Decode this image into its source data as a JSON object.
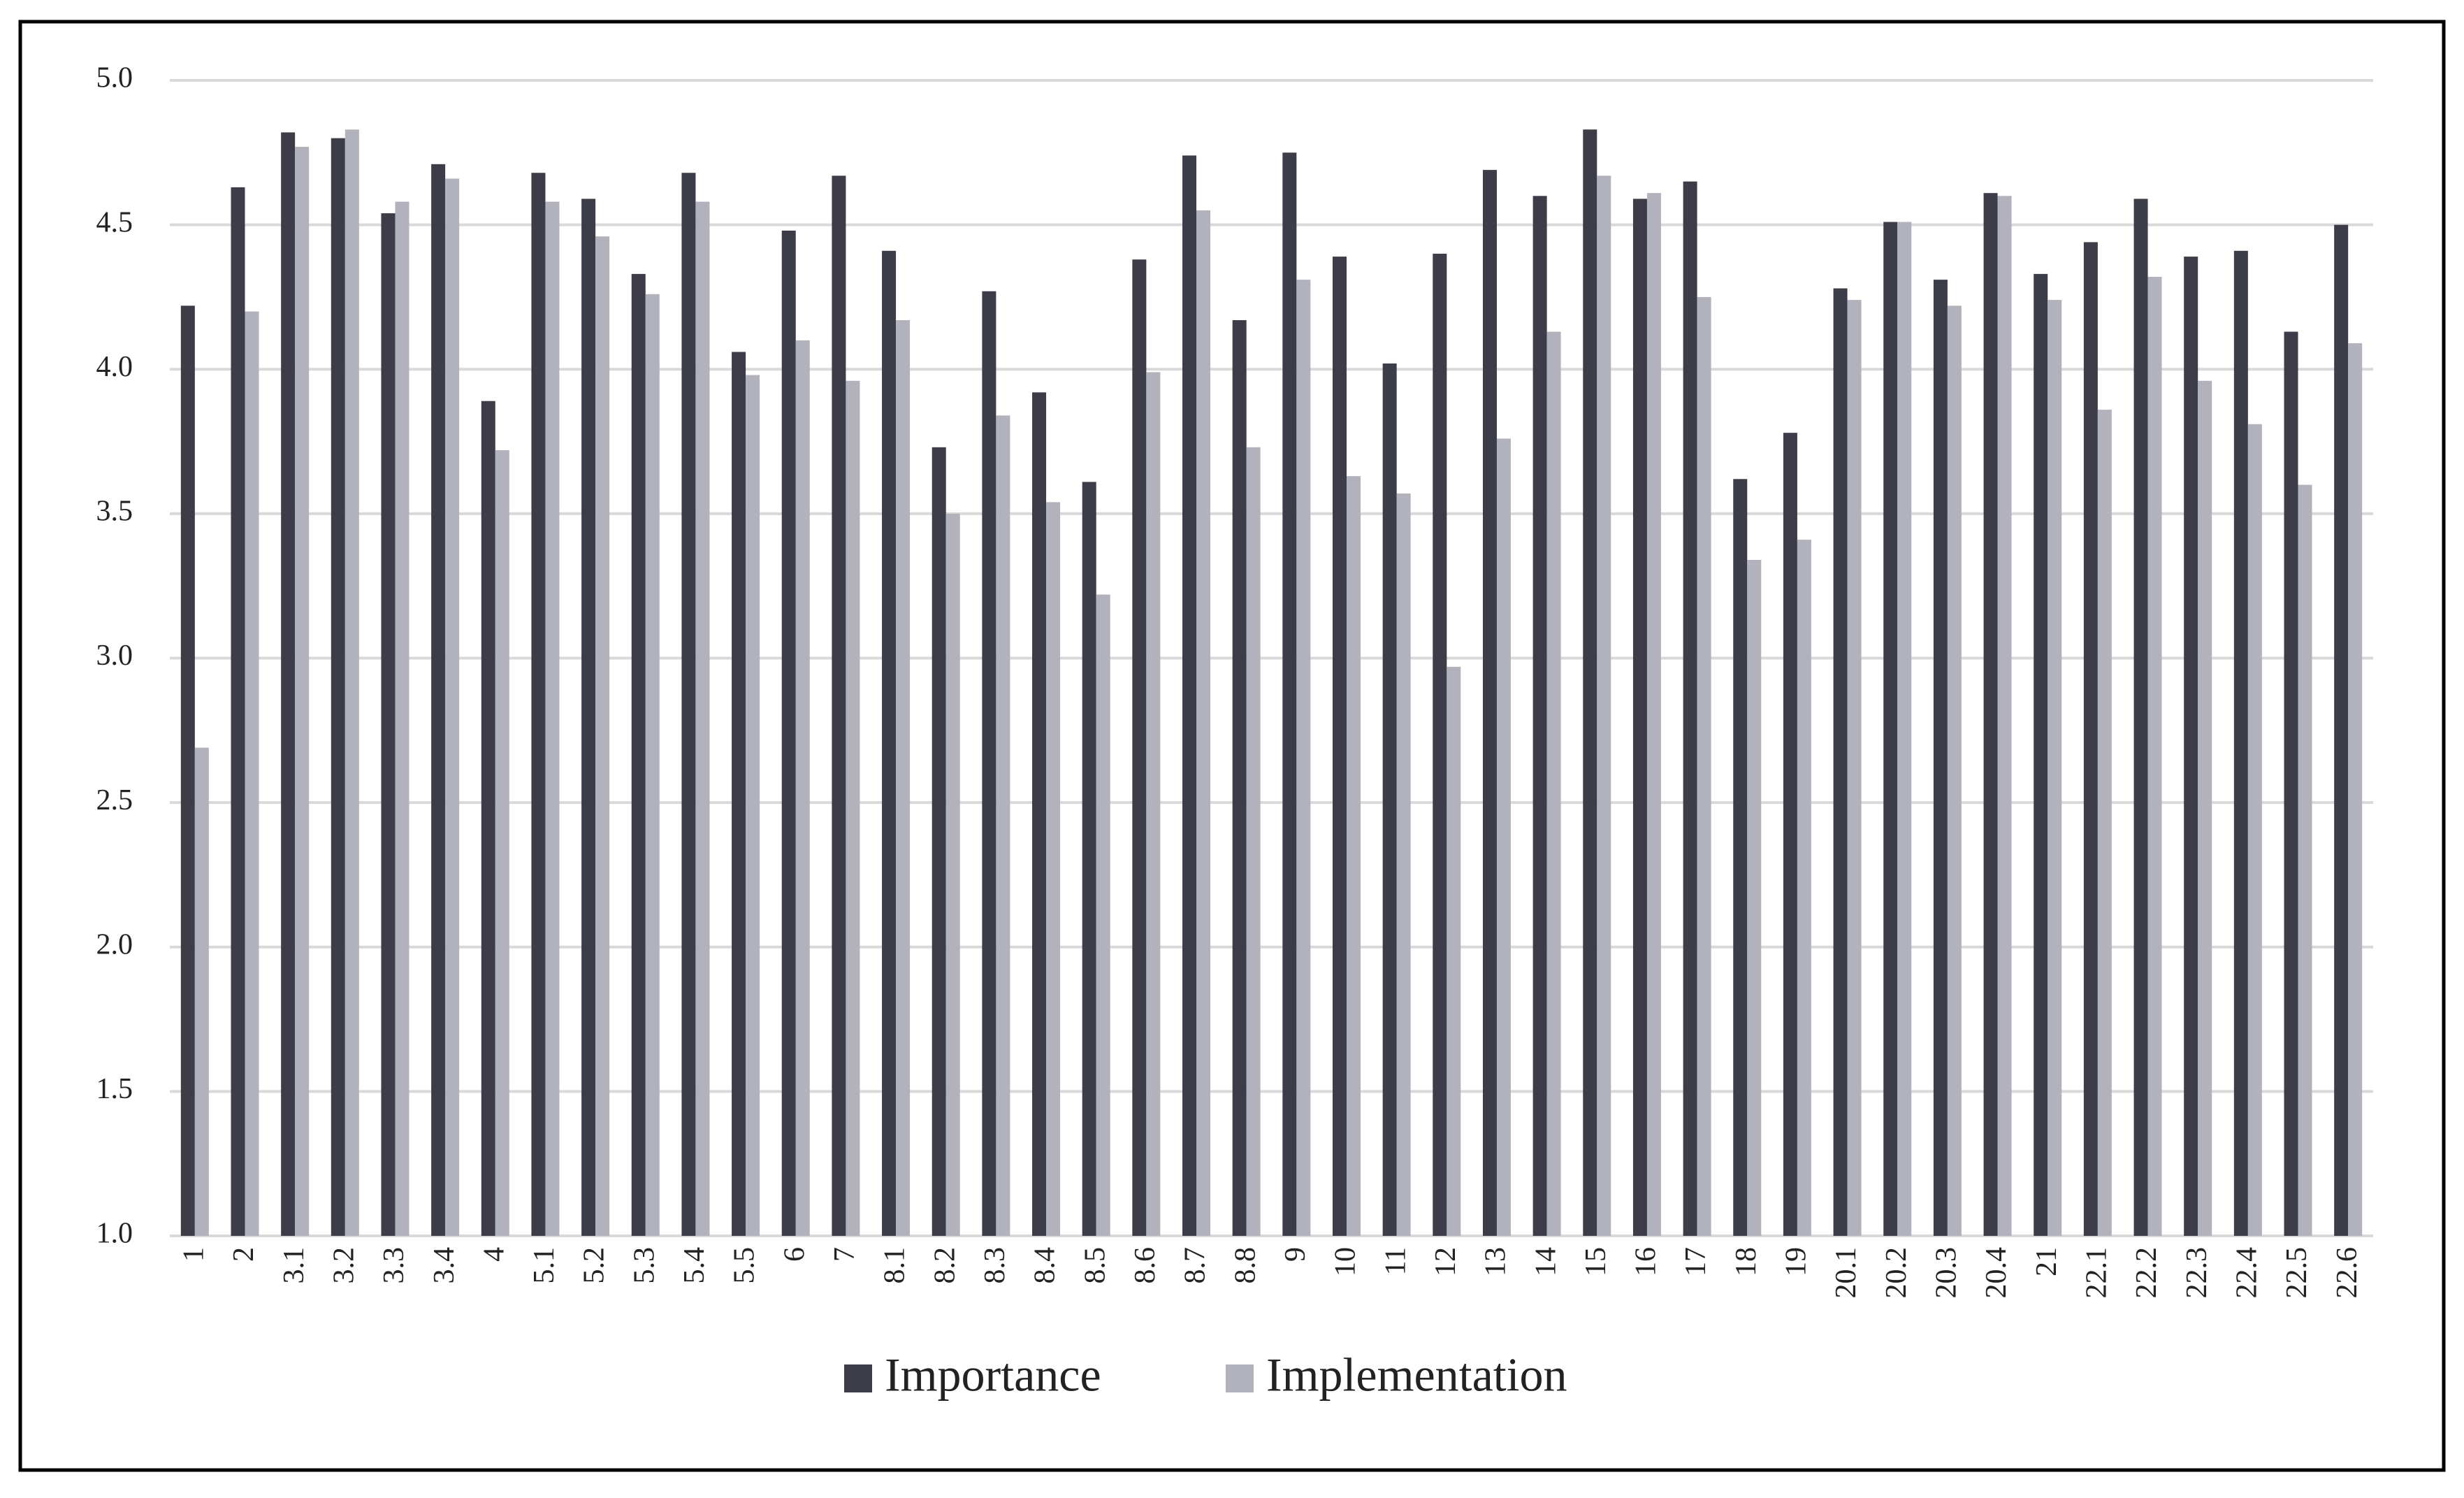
{
  "chart_data": {
    "type": "bar",
    "categories": [
      "1",
      "2",
      "3.1",
      "3.2",
      "3.3",
      "3.4",
      "4",
      "5.1",
      "5.2",
      "5.3",
      "5.4",
      "5.5",
      "6",
      "7",
      "8.1",
      "8.2",
      "8.3",
      "8.4",
      "8.5",
      "8.6",
      "8.7",
      "8.8",
      "9",
      "10",
      "11",
      "12",
      "13",
      "14",
      "15",
      "16",
      "17",
      "18",
      "19",
      "20.1",
      "20.2",
      "20.3",
      "20.4",
      "21",
      "22.1",
      "22.2",
      "22.3",
      "22.4",
      "22.5",
      "22.6"
    ],
    "series": [
      {
        "name": "Importance",
        "color": "#3d3d4a",
        "values": [
          4.22,
          4.63,
          4.82,
          4.8,
          4.54,
          4.71,
          3.89,
          4.68,
          4.59,
          4.33,
          4.68,
          4.06,
          4.48,
          4.67,
          4.41,
          3.73,
          4.27,
          3.92,
          3.61,
          4.38,
          4.74,
          4.17,
          4.75,
          4.39,
          4.02,
          4.4,
          4.69,
          4.6,
          4.83,
          4.59,
          4.65,
          3.62,
          3.78,
          4.28,
          4.51,
          4.31,
          4.61,
          4.33,
          4.44,
          4.59,
          4.39,
          4.41,
          4.13,
          4.5
        ]
      },
      {
        "name": "Implementation",
        "color": "#b2b2bc",
        "values": [
          2.69,
          4.2,
          4.77,
          4.83,
          4.58,
          4.66,
          3.72,
          4.58,
          4.46,
          4.26,
          4.58,
          3.98,
          4.1,
          3.96,
          4.17,
          3.5,
          3.84,
          3.54,
          3.22,
          3.99,
          4.55,
          3.73,
          4.31,
          3.63,
          3.57,
          2.97,
          3.76,
          4.13,
          4.67,
          4.61,
          4.25,
          3.34,
          3.41,
          4.24,
          4.51,
          4.22,
          4.6,
          4.24,
          3.86,
          4.32,
          3.96,
          3.81,
          3.6,
          4.09
        ]
      }
    ],
    "ylim": [
      1,
      5
    ],
    "yticks": [
      {
        "value": 1,
        "label": "1.0"
      },
      1.5,
      {
        "value": 2,
        "label": "2.0"
      },
      2.5,
      {
        "value": 3,
        "label": "3.0"
      },
      3.5,
      {
        "value": 4,
        "label": "4.0"
      },
      4.5,
      {
        "value": 5,
        "label": "5.0"
      }
    ],
    "grid": true,
    "legend": "bottom"
  }
}
